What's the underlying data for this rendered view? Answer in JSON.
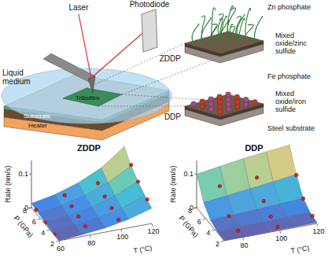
{
  "diagram": {
    "labels": {
      "laser": "Laser",
      "photodiode": "Photodiode",
      "liquid_medium": [
        "Liquid",
        "medium"
      ],
      "tribofilm": "Tribofilm",
      "substrate": "Substrate",
      "heater": "Heater"
    },
    "insets": [
      {
        "name": "ZDDP",
        "top": "Zn phosphate",
        "middle": [
          "Mixed",
          "oxide/zinc",
          "sulfide"
        ]
      },
      {
        "name": "DDP",
        "top": "Fe phosphate",
        "middle": [
          "Mixed",
          "oxide/iron",
          "sulfide"
        ],
        "bottom": "Steel substrate"
      }
    ]
  },
  "chart_data": [
    {
      "type": "surface",
      "title": "ZDDP",
      "x_label": "T (°C)",
      "y_label": "P (GPa)",
      "z_label": "Rate (nm/s)",
      "xlim": [
        60,
        120
      ],
      "xticks": [
        60,
        80,
        100,
        120
      ],
      "ylim": [
        2,
        8
      ],
      "yticks": [
        2,
        4,
        6,
        8
      ],
      "zlim": [
        0,
        0.14
      ],
      "zticks": [
        0,
        0.1
      ],
      "surface": {
        "x": [
          60,
          75,
          90,
          105,
          120
        ],
        "y": [
          2,
          3.5,
          5,
          6.5,
          8
        ],
        "z": [
          [
            0.0,
            0.005,
            0.012,
            0.025,
            0.045
          ],
          [
            0.002,
            0.008,
            0.018,
            0.033,
            0.058
          ],
          [
            0.004,
            0.012,
            0.025,
            0.045,
            0.075
          ],
          [
            0.008,
            0.018,
            0.035,
            0.06,
            0.098
          ],
          [
            0.013,
            0.026,
            0.048,
            0.08,
            0.13
          ]
        ]
      },
      "points": {
        "x": [
          60,
          60,
          60,
          80,
          80,
          80,
          80,
          100,
          100,
          100,
          100,
          120,
          120,
          120
        ],
        "y": [
          3,
          5,
          7,
          3,
          4.5,
          6,
          7.5,
          2.5,
          4,
          5.5,
          7,
          3,
          5,
          6.5
        ],
        "z": [
          0.002,
          0.005,
          0.01,
          0.01,
          0.014,
          0.02,
          0.028,
          0.02,
          0.03,
          0.04,
          0.055,
          0.055,
          0.075,
          0.1
        ],
        "color": "#e02020"
      }
    },
    {
      "type": "surface",
      "title": "DDP",
      "x_label": "T (°C)",
      "y_label": "P (GPa)",
      "z_label": "Rate (nm/s)",
      "xlim": [
        70,
        120
      ],
      "xticks": [
        80,
        100,
        120
      ],
      "ylim": [
        2,
        8
      ],
      "yticks": [
        2,
        4,
        6,
        8
      ],
      "zlim": [
        0,
        0.14
      ],
      "zticks": [
        0,
        0.1
      ],
      "surface": {
        "x": [
          70,
          82.5,
          95,
          107.5,
          120
        ],
        "y": [
          2,
          3.5,
          5,
          6.5,
          8
        ],
        "z": [
          [
            0,
            0,
            0.001,
            0.002,
            0.003
          ],
          [
            0.003,
            0.004,
            0.005,
            0.007,
            0.009
          ],
          [
            0.012,
            0.015,
            0.018,
            0.022,
            0.026
          ],
          [
            0.04,
            0.047,
            0.055,
            0.063,
            0.072
          ],
          [
            0.1,
            0.11,
            0.12,
            0.128,
            0.135
          ]
        ]
      },
      "points": {
        "x": [
          80,
          80,
          80,
          100,
          100,
          100,
          100,
          120,
          120,
          120
        ],
        "y": [
          3,
          5,
          7,
          2.5,
          4,
          5.5,
          7,
          3,
          5,
          6.5
        ],
        "z": [
          0.003,
          0.014,
          0.07,
          0.002,
          0.008,
          0.03,
          0.075,
          0.006,
          0.025,
          0.07
        ],
        "color": "#e02020"
      }
    }
  ]
}
